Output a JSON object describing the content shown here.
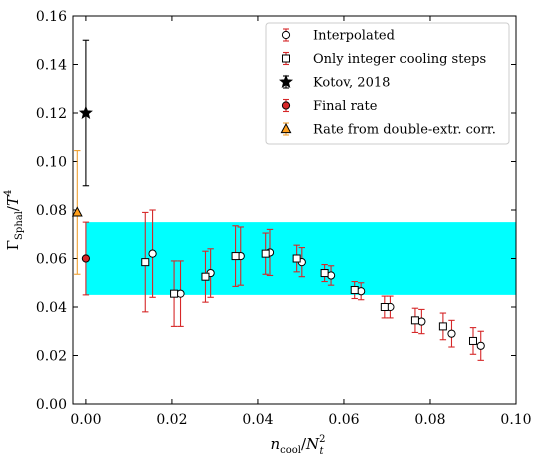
{
  "chart_data": {
    "type": "scatter",
    "xlabel": "n_cool/N_t^2",
    "ylabel": "Γ_Sphal/T^4",
    "xlim": [
      -0.003,
      0.1
    ],
    "ylim": [
      0.0,
      0.16
    ],
    "xticks": [
      "0.00",
      "0.02",
      "0.04",
      "0.06",
      "0.08",
      "0.10"
    ],
    "yticks": [
      "0.00",
      "0.02",
      "0.04",
      "0.06",
      "0.08",
      "0.10",
      "0.12",
      "0.14",
      "0.16"
    ],
    "legend_position": "top-right",
    "band": {
      "y_low": 0.045,
      "y_high": 0.075,
      "x_from": 0.0,
      "x_to": 0.1,
      "color": "#00ffff"
    },
    "series": [
      {
        "name": "Interpolated",
        "marker": "circle",
        "face": "#ffffff",
        "edge": "#000000",
        "error_color": "#d62728",
        "points": [
          {
            "x": 0.0155,
            "y": 0.062,
            "err": 0.018
          },
          {
            "x": 0.022,
            "y": 0.0455,
            "err": 0.0135
          },
          {
            "x": 0.029,
            "y": 0.054,
            "err": 0.01
          },
          {
            "x": 0.036,
            "y": 0.061,
            "err": 0.012
          },
          {
            "x": 0.0428,
            "y": 0.0625,
            "err": 0.0095
          },
          {
            "x": 0.0502,
            "y": 0.0585,
            "err": 0.006
          },
          {
            "x": 0.057,
            "y": 0.053,
            "err": 0.004
          },
          {
            "x": 0.064,
            "y": 0.0465,
            "err": 0.0035
          },
          {
            "x": 0.0708,
            "y": 0.04,
            "err": 0.0045
          },
          {
            "x": 0.078,
            "y": 0.034,
            "err": 0.005
          },
          {
            "x": 0.085,
            "y": 0.029,
            "err": 0.0055
          },
          {
            "x": 0.0918,
            "y": 0.024,
            "err": 0.006
          }
        ]
      },
      {
        "name": "Only integer cooling steps",
        "marker": "square",
        "face": "#ffffff",
        "edge": "#000000",
        "error_color": "#d62728",
        "points": [
          {
            "x": 0.0138,
            "y": 0.0585,
            "err": 0.0205
          },
          {
            "x": 0.0205,
            "y": 0.0455,
            "err": 0.0135
          },
          {
            "x": 0.0278,
            "y": 0.0525,
            "err": 0.0105
          },
          {
            "x": 0.0348,
            "y": 0.061,
            "err": 0.0125
          },
          {
            "x": 0.0418,
            "y": 0.062,
            "err": 0.0085
          },
          {
            "x": 0.049,
            "y": 0.06,
            "err": 0.0055
          },
          {
            "x": 0.0555,
            "y": 0.054,
            "err": 0.0035
          },
          {
            "x": 0.0625,
            "y": 0.047,
            "err": 0.0035
          },
          {
            "x": 0.0695,
            "y": 0.04,
            "err": 0.0045
          },
          {
            "x": 0.0765,
            "y": 0.0345,
            "err": 0.005
          },
          {
            "x": 0.083,
            "y": 0.032,
            "err": 0.0055
          },
          {
            "x": 0.09,
            "y": 0.026,
            "err": 0.0055
          }
        ]
      },
      {
        "name": "Kotov, 2018",
        "marker": "star",
        "face": "#000000",
        "edge": "#000000",
        "error_color": "#000000",
        "points": [
          {
            "x": 0.0,
            "y": 0.12,
            "err": 0.03
          }
        ]
      },
      {
        "name": "Final rate",
        "marker": "circle",
        "face": "#d62728",
        "edge": "#000000",
        "error_color": "#d62728",
        "points": [
          {
            "x": 0.0,
            "y": 0.06,
            "err": 0.015
          }
        ]
      },
      {
        "name": "Rate from double-extr. corr.",
        "marker": "triangle",
        "face": "#ff9f1c",
        "edge": "#000000",
        "error_color": "#f0a030",
        "points": [
          {
            "x": -0.002,
            "y": 0.079,
            "err": 0.0255
          }
        ]
      }
    ]
  }
}
